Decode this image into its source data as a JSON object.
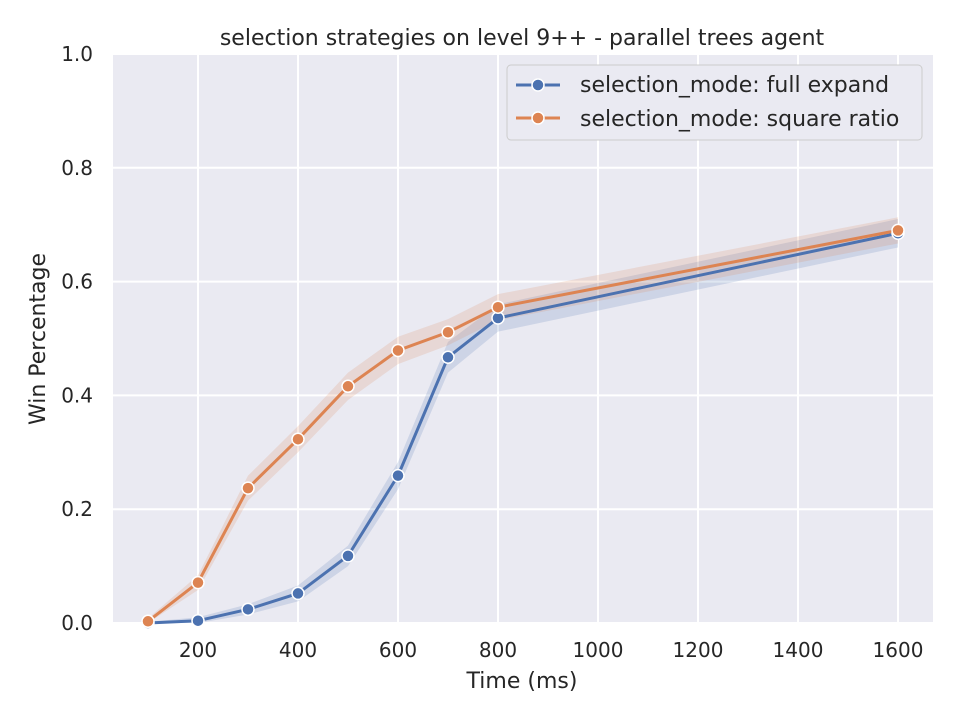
{
  "chart_data": {
    "type": "line",
    "title": "selection strategies on level 9++ - parallel trees agent",
    "xlabel": "Time (ms)",
    "ylabel": "Win Percentage",
    "xlim": [
      30,
      1670
    ],
    "ylim": [
      0,
      1.0
    ],
    "xticks": [
      200,
      400,
      600,
      800,
      1000,
      1200,
      1400,
      1600
    ],
    "xtick_labels": [
      "200",
      "400",
      "600",
      "800",
      "1000",
      "1200",
      "1400",
      "1600"
    ],
    "yticks": [
      0,
      0.2,
      0.4,
      0.6,
      0.8,
      1.0
    ],
    "ytick_labels": [
      "0.0",
      "0.2",
      "0.4",
      "0.6",
      "0.8",
      "1.0"
    ],
    "grid": true,
    "legend_position": "top-right",
    "series": [
      {
        "name": "selection_mode: full expand",
        "color": "#4c72b0",
        "x": [
          100,
          200,
          300,
          400,
          500,
          600,
          700,
          800,
          1600
        ],
        "y": [
          0.0,
          0.004,
          0.024,
          0.052,
          0.118,
          0.259,
          0.467,
          0.536,
          0.685
        ],
        "ci_low": [
          0.0,
          0.0,
          0.015,
          0.038,
          0.1,
          0.235,
          0.44,
          0.512,
          0.66
        ],
        "ci_high": [
          0.002,
          0.01,
          0.033,
          0.066,
          0.136,
          0.283,
          0.494,
          0.56,
          0.71
        ]
      },
      {
        "name": "selection_mode: square ratio",
        "color": "#dd8452",
        "x": [
          100,
          200,
          300,
          400,
          500,
          600,
          700,
          800,
          1600
        ],
        "y": [
          0.003,
          0.071,
          0.237,
          0.323,
          0.416,
          0.479,
          0.511,
          0.555,
          0.69
        ],
        "ci_low": [
          0.0,
          0.058,
          0.215,
          0.3,
          0.392,
          0.455,
          0.488,
          0.532,
          0.667
        ],
        "ci_high": [
          0.008,
          0.084,
          0.259,
          0.346,
          0.44,
          0.503,
          0.534,
          0.578,
          0.713
        ]
      }
    ]
  }
}
